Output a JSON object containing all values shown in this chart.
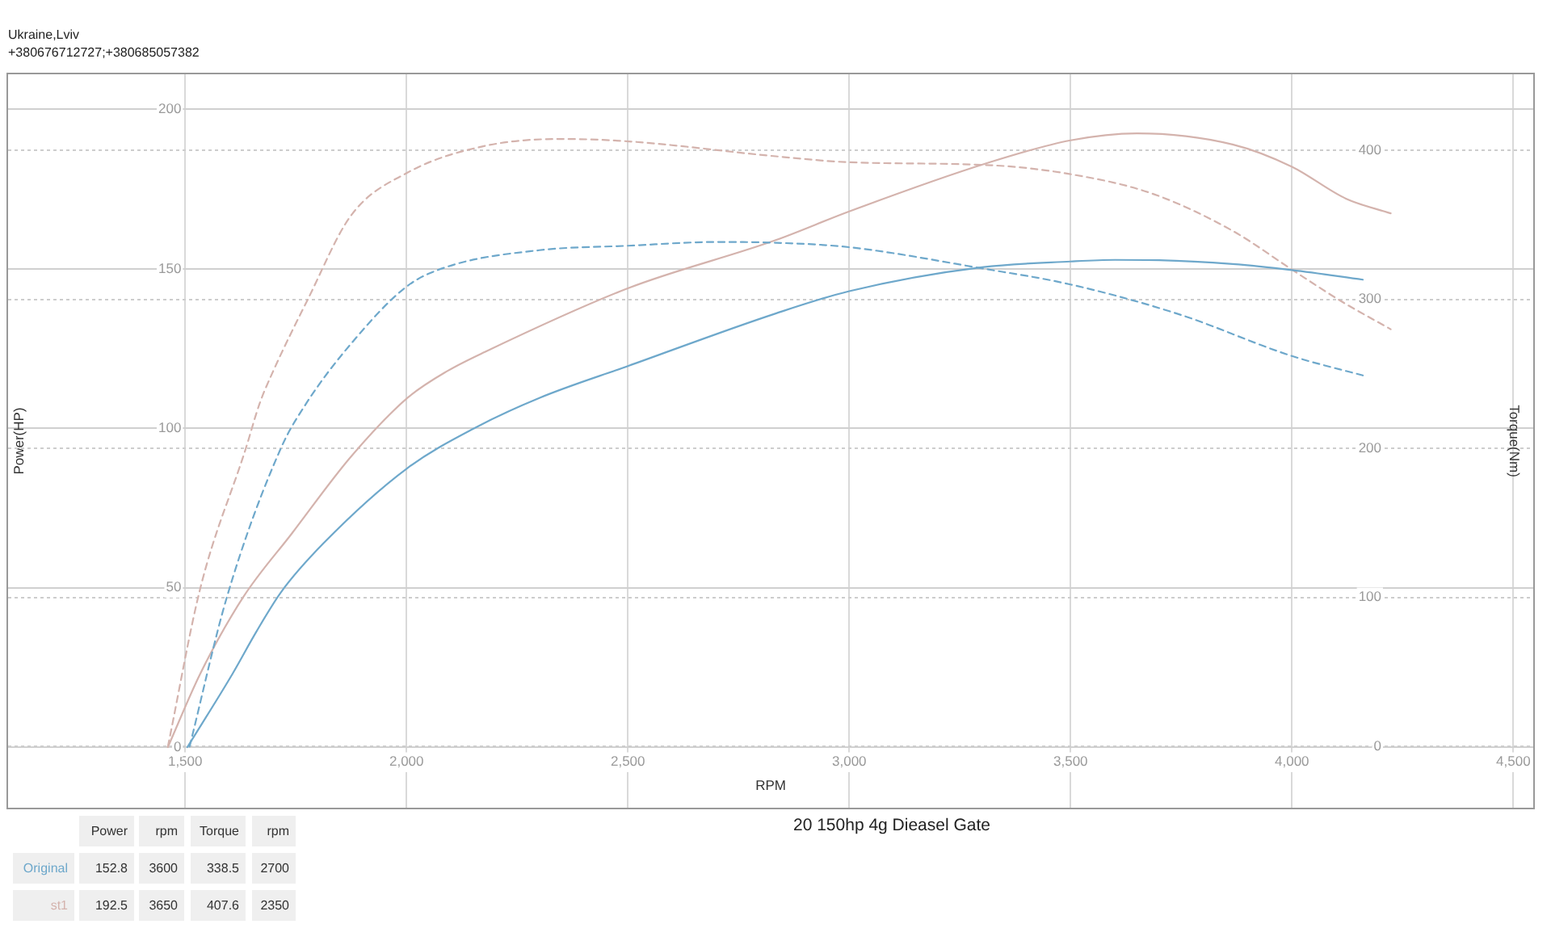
{
  "chart_data": {
    "type": "line",
    "title": "20 150hp 4g Dieasel Gate",
    "xlabel": "RPM",
    "ylabel": "Power(HP)",
    "y2label": "Torque(Nm)",
    "annotations": [
      "Ukraine,Lviv",
      "+380676712727;+380685057382",
      "Power",
      "rpm",
      "Torque",
      "rpm",
      "152.8",
      "3600",
      "338.5",
      "2700",
      "192.5",
      "3650",
      "407.6",
      "2350"
    ],
    "xlim": [
      1100,
      4545
    ],
    "xticks": [
      {
        "value": 1500,
        "label": "1,500"
      },
      {
        "value": 2000,
        "label": "2,000"
      },
      {
        "value": 2500,
        "label": "2,500"
      },
      {
        "value": 3000,
        "label": "3,000"
      },
      {
        "value": 3500,
        "label": "3,500"
      },
      {
        "value": 4000,
        "label": "4,000"
      },
      {
        "value": 4500,
        "label": "4,500"
      }
    ],
    "ylim": [
      -19,
      211
    ],
    "yticks": [
      0,
      50,
      100,
      150,
      200
    ],
    "y2lim": [
      -41,
      451
    ],
    "y2ticks": [
      0,
      100,
      200,
      300,
      400
    ],
    "grid": true,
    "legend": "bottom left",
    "marker": "none",
    "series": [
      {
        "name": "Original",
        "color": "#6ea8cb",
        "line_style": "solid",
        "x": [
          1505,
          1607,
          1660,
          1716,
          1813,
          2002,
          2153,
          2300,
          2500,
          2834,
          3000,
          3300,
          3500,
          3600,
          3700,
          3866,
          4000,
          4160
        ],
        "values": [
          0,
          23,
          36,
          48.5,
          64,
          87.5,
          100,
          109.5,
          119.5,
          136,
          143,
          150.5,
          152.3,
          152.8,
          152.7,
          151.5,
          149.6,
          146.6
        ]
      },
      {
        "color": "#6ea8cb",
        "line_style": "dashed",
        "axis": "y2",
        "x": [
          1510,
          1594,
          1716,
          1773,
          1874,
          2002,
          2093,
          2300,
          2500,
          2700,
          2834,
          3000,
          3296,
          3500,
          3745,
          4000,
          4160
        ],
        "values": [
          0,
          100,
          200,
          230,
          270,
          309,
          322,
          333,
          336,
          338.5,
          338,
          335,
          321,
          310,
          290,
          262,
          249
        ]
      },
      {
        "name": "st1",
        "color": "#d4b3ad",
        "line_style": "solid",
        "x": [
          1461,
          1534,
          1631,
          1741,
          1874,
          2002,
          2093,
          2178,
          2502,
          2834,
          3000,
          3308,
          3500,
          3650,
          3866,
          4000,
          4122,
          4223
        ],
        "values": [
          0,
          23,
          47,
          67,
          91,
          109.5,
          118,
          124,
          144,
          159,
          168,
          183,
          190.3,
          192.5,
          189,
          182,
          172,
          167.4
        ]
      },
      {
        "color": "#d4b3ad",
        "line_style": "dashed",
        "axis": "y2",
        "x": [
          1461,
          1534,
          1637,
          1668,
          1699,
          1777,
          1874,
          2002,
          2178,
          2350,
          2502,
          2834,
          3000,
          3320,
          3500,
          3684,
          3866,
          4000,
          4110,
          4223
        ],
        "values": [
          0,
          106,
          200,
          230,
          252,
          300,
          356,
          385,
          403,
          407.6,
          406,
          396,
          392,
          390,
          384,
          371,
          346,
          320,
          299,
          280
        ]
      }
    ]
  }
}
